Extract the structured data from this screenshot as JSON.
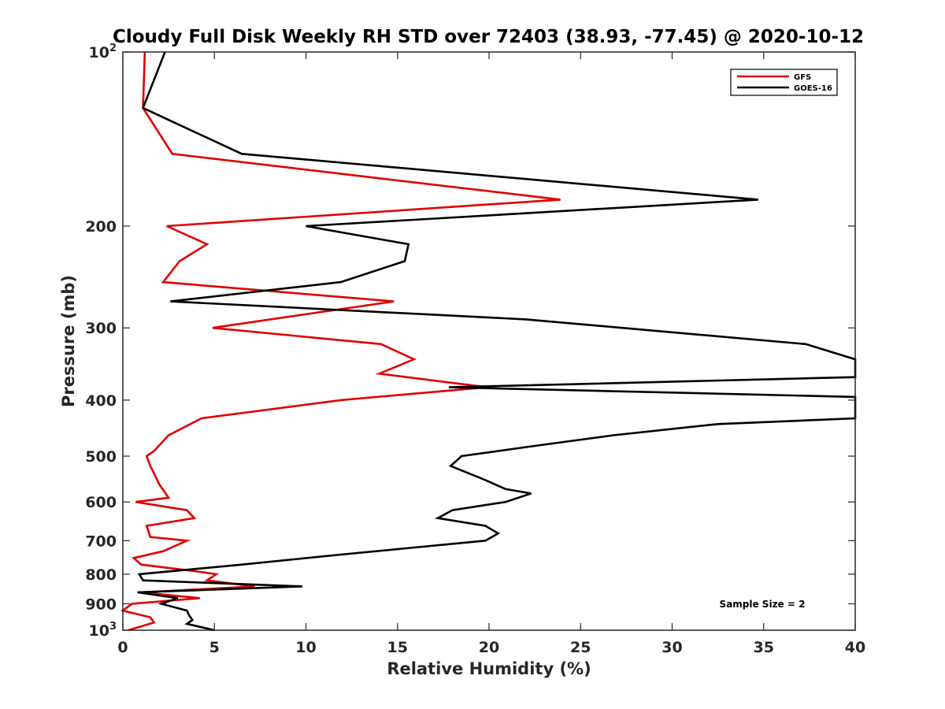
{
  "chart_data": {
    "type": "line",
    "title": "Cloudy Full Disk Weekly RH STD over 72403 (38.93, -77.45) @ 2020-10-12",
    "xlabel": "Relative Humidity (%)",
    "ylabel": "Pressure (mb)",
    "xlim": [
      0,
      40
    ],
    "ylim": [
      100,
      1000
    ],
    "y_scale": "log",
    "y_reversed": true,
    "grid": false,
    "legend_position": "top-right",
    "x_ticks": [
      "0",
      "5",
      "10",
      "15",
      "20",
      "25",
      "30",
      "35",
      "40"
    ],
    "y_ticks": [
      {
        "value": 100,
        "label": "10",
        "sup": "2"
      },
      {
        "value": 200,
        "label": "200",
        "sup": ""
      },
      {
        "value": 300,
        "label": "300",
        "sup": ""
      },
      {
        "value": 400,
        "label": "400",
        "sup": ""
      },
      {
        "value": 500,
        "label": "500",
        "sup": ""
      },
      {
        "value": 600,
        "label": "600",
        "sup": ""
      },
      {
        "value": 700,
        "label": "700",
        "sup": ""
      },
      {
        "value": 800,
        "label": "800",
        "sup": ""
      },
      {
        "value": 900,
        "label": "900",
        "sup": ""
      },
      {
        "value": 1000,
        "label": "10",
        "sup": "3"
      }
    ],
    "annotation": "Sample Size = 2",
    "series": [
      {
        "name": "GFS",
        "color": "#e00000",
        "points": [
          [
            1.2,
            100
          ],
          [
            1.1,
            125
          ],
          [
            2.7,
            150
          ],
          [
            23.9,
            180
          ],
          [
            2.4,
            200
          ],
          [
            4.6,
            215
          ],
          [
            3.1,
            230
          ],
          [
            2.2,
            250
          ],
          [
            14.8,
            270
          ],
          [
            4.9,
            300
          ],
          [
            14.1,
            320
          ],
          [
            15.9,
            340
          ],
          [
            14.0,
            360
          ],
          [
            19.9,
            380
          ],
          [
            11.9,
            400
          ],
          [
            4.3,
            430
          ],
          [
            2.5,
            460
          ],
          [
            1.7,
            490
          ],
          [
            1.3,
            500
          ],
          [
            1.5,
            520
          ],
          [
            2.0,
            560
          ],
          [
            2.5,
            590
          ],
          [
            0.7,
            600
          ],
          [
            3.5,
            620
          ],
          [
            3.9,
            640
          ],
          [
            1.3,
            660
          ],
          [
            1.5,
            690
          ],
          [
            3.5,
            700
          ],
          [
            2.2,
            730
          ],
          [
            0.6,
            750
          ],
          [
            1.0,
            770
          ],
          [
            3.9,
            790
          ],
          [
            5.1,
            800
          ],
          [
            4.6,
            820
          ],
          [
            7.2,
            840
          ],
          [
            1.0,
            860
          ],
          [
            4.2,
            880
          ],
          [
            0.5,
            900
          ],
          [
            0,
            925
          ],
          [
            1.5,
            950
          ],
          [
            1.7,
            970
          ],
          [
            0.3,
            1000
          ]
        ]
      },
      {
        "name": "GOES-16",
        "color": "#000000",
        "points": [
          [
            2.3,
            100
          ],
          [
            1.1,
            125
          ],
          [
            6.5,
            150
          ],
          [
            34.7,
            180
          ],
          [
            10.0,
            200
          ],
          [
            15.6,
            215
          ],
          [
            15.4,
            230
          ],
          [
            11.9,
            250
          ],
          [
            2.6,
            270
          ],
          [
            22.0,
            290
          ],
          [
            37.3,
            320
          ],
          [
            40.0,
            340
          ],
          [
            40.0,
            365
          ],
          [
            17.8,
            380
          ],
          [
            40.0,
            395
          ],
          [
            40.0,
            430
          ],
          [
            32.5,
            440
          ],
          [
            26.8,
            460
          ],
          [
            22.5,
            480
          ],
          [
            18.5,
            500
          ],
          [
            17.9,
            520
          ],
          [
            19.8,
            550
          ],
          [
            20.9,
            570
          ],
          [
            22.3,
            580
          ],
          [
            20.9,
            600
          ],
          [
            18.0,
            620
          ],
          [
            17.2,
            640
          ],
          [
            19.8,
            660
          ],
          [
            20.5,
            680
          ],
          [
            19.8,
            700
          ],
          [
            11.9,
            740
          ],
          [
            6.5,
            770
          ],
          [
            0.9,
            800
          ],
          [
            1.1,
            820
          ],
          [
            9.8,
            840
          ],
          [
            0.8,
            860
          ],
          [
            3.0,
            880
          ],
          [
            2.1,
            900
          ],
          [
            3.5,
            925
          ],
          [
            3.6,
            940
          ],
          [
            3.8,
            960
          ],
          [
            3.5,
            975
          ],
          [
            5.0,
            1000
          ]
        ]
      }
    ]
  }
}
